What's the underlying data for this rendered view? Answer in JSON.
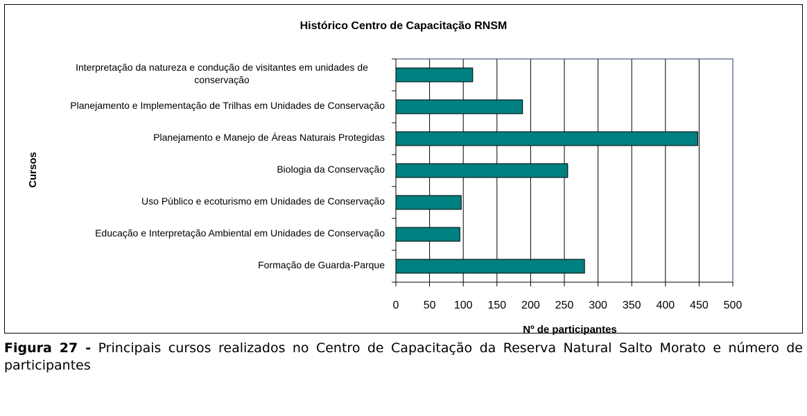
{
  "chart_data": {
    "type": "bar",
    "orientation": "horizontal",
    "title": "Histórico Centro de Capacitação RNSM",
    "x_label": "Nº de participantes",
    "y_label": "Cursos",
    "categories": [
      "Interpretação da natureza e condução de visitantes em unidades de conservação",
      "Planejamento e Implementação de Trilhas em Unidades de Conservação",
      "Planejamento e Manejo de Áreas Naturais Protegidas",
      "Biologia da Conservação",
      "Uso Público e ecoturismo  em Unidades de Conservação",
      "Educação e Interpretação Ambiental em Unidades de Conservação",
      "Formação de Guarda-Parque"
    ],
    "values": [
      114,
      188,
      448,
      255,
      97,
      95,
      280
    ],
    "color": "#008080",
    "xlim": [
      0,
      500
    ],
    "xticks": [
      0,
      50,
      100,
      150,
      200,
      250,
      300,
      350,
      400,
      450,
      500
    ],
    "grid": true
  },
  "caption": {
    "label": "Figura 27 -",
    "text": "Principais cursos realizados no Centro de Capacitação da Reserva Natural Salto Morato e número de participantes"
  }
}
